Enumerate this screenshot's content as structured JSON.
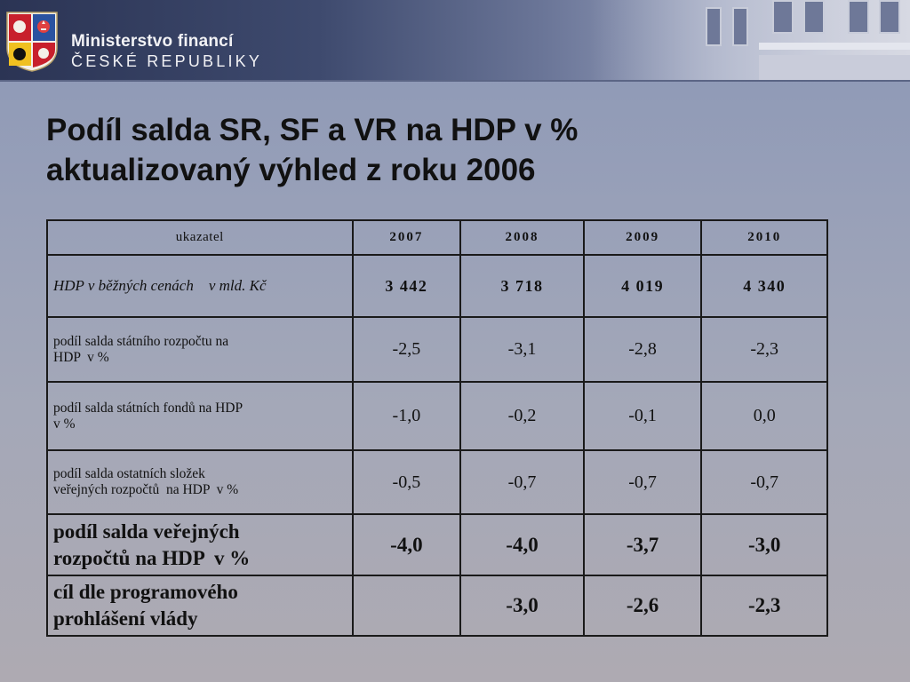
{
  "header": {
    "ministry_line1": "Ministerstvo financí",
    "ministry_line2": "ČESKÉ REPUBLIKY"
  },
  "title": {
    "line1": "Podíl salda SR, SF a VR na HDP v %",
    "line2": "aktualizovaný výhled z roku 2006"
  },
  "table": {
    "headers": [
      "ukazatel",
      "2007",
      "2008",
      "2009",
      "2010"
    ],
    "rows": [
      {
        "label": "HDP v běžných cenách    v mld. Kč",
        "values": [
          "3 442",
          "3 718",
          "4 019",
          "4 340"
        ]
      },
      {
        "label_line1": "podíl salda státního rozpočtu na",
        "label_line2": "HDP  v %",
        "values": [
          "-2,5",
          "-3,1",
          "-2,8",
          "-2,3"
        ]
      },
      {
        "label_line1": "podíl salda státních fondů na HDP",
        "label_line2": "v %",
        "values": [
          "-1,0",
          "-0,2",
          "-0,1",
          "0,0"
        ]
      },
      {
        "label_line1": "podíl salda ostatních složek",
        "label_line2": "veřejných rozpočtů  na HDP  v %",
        "values": [
          "-0,5",
          "-0,7",
          "-0,7",
          "-0,7"
        ]
      },
      {
        "label_line1": "podíl salda veřejných",
        "label_line2": "rozpočtů na HDP  v %",
        "values": [
          "-4,0",
          "-4,0",
          "-3,7",
          "-3,0"
        ]
      },
      {
        "label_line1": "cíl dle programového",
        "label_line2": "prohlášení vlády",
        "values": [
          "",
          "-3,0",
          "-2,6",
          "-2,3"
        ]
      }
    ]
  },
  "colors": {
    "header_dark": "#2b3454",
    "background": "#98a0b8",
    "text": "#111111"
  },
  "icons": {
    "logo": "czech-coat-of-arms-icon"
  }
}
